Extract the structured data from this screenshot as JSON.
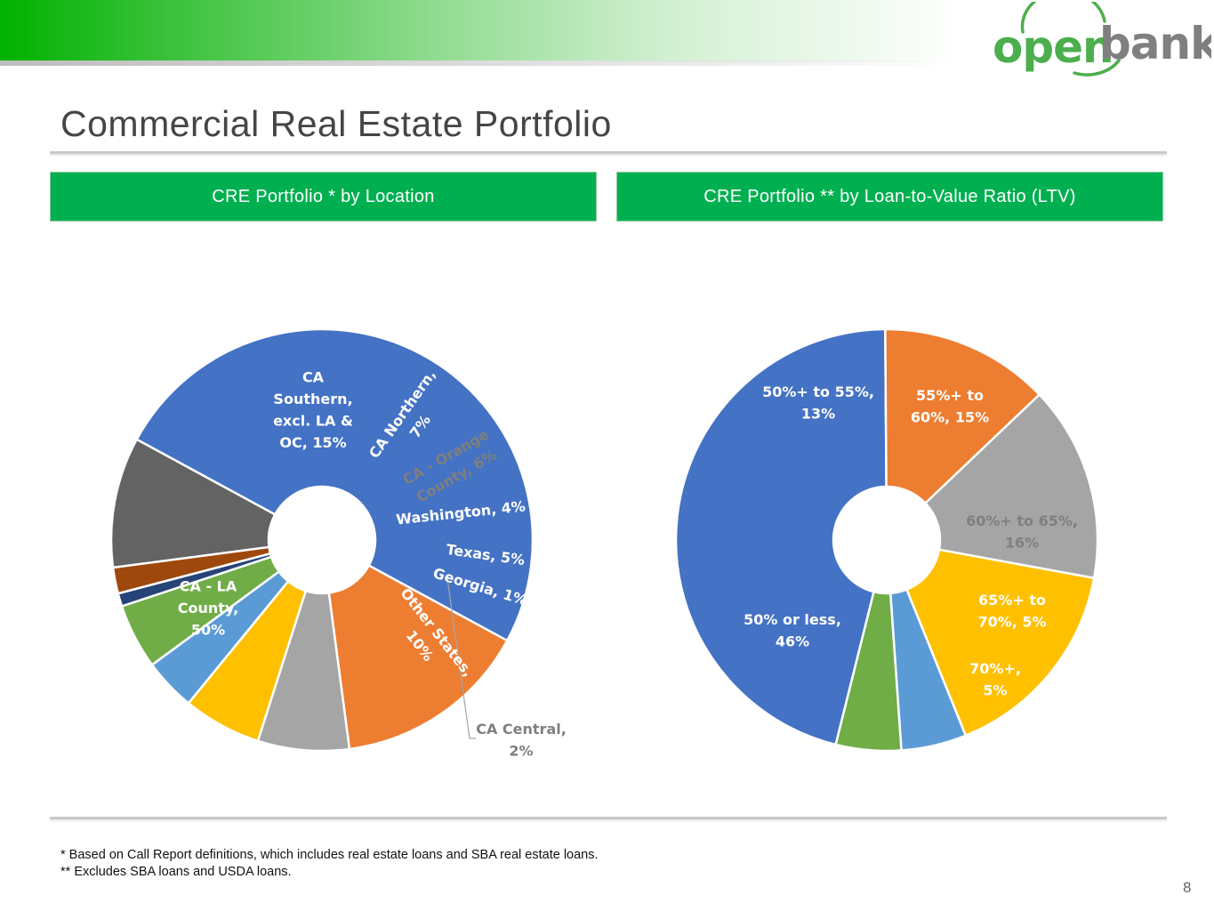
{
  "header": {
    "logo_text_open": "open",
    "logo_text_bank": "bank",
    "title": "Commercial Real Estate Portfolio"
  },
  "colors": {
    "band_green": "#00b200",
    "header_green": "#00b050",
    "logo_green": "#4cae4c",
    "logo_gray": "#7f7f7f"
  },
  "sections": {
    "location_title": "CRE Portfolio * by Location",
    "ltv_title": "CRE Portfolio ** by Loan-to-Value Ratio (LTV)"
  },
  "chart_data": [
    {
      "type": "pie",
      "donut": true,
      "title": "CRE Portfolio * by Location",
      "categories": [
        "CA - LA County",
        "CA Southern, excl. LA & OC",
        "CA Northern",
        "CA - Orange County",
        "Washington",
        "Texas",
        "Georgia",
        "CA Central",
        "Other States"
      ],
      "values": [
        50,
        15,
        7,
        6,
        4,
        5,
        1,
        2,
        10
      ],
      "units": "%",
      "colors": [
        "#4472c4",
        "#ed7d31",
        "#a5a5a5",
        "#ffc000",
        "#5b9bd5",
        "#70ad47",
        "#264478",
        "#9e480e",
        "#636363"
      ],
      "labels": [
        [
          "CA - LA",
          "County,",
          "50%"
        ],
        [
          "CA",
          "Southern,",
          "excl. LA &",
          "OC, 15%"
        ],
        [
          "CA Northern,",
          "7%"
        ],
        [
          "CA - Orange",
          "County, 6%"
        ],
        [
          "Washington, 4%"
        ],
        [
          "Texas, 5%"
        ],
        [
          "Georgia, 1%"
        ],
        [
          "CA Central,",
          "2%"
        ],
        [
          "Other States,",
          "10%"
        ]
      ]
    },
    {
      "type": "pie",
      "donut": true,
      "title": "CRE Portfolio ** by Loan-to-Value Ratio (LTV)",
      "categories": [
        "50% or less",
        "50%+ to 55%",
        "55%+ to 60%",
        "60%+ to 65%",
        "65%+ to 70%",
        "70%+"
      ],
      "values": [
        46,
        13,
        15,
        16,
        5,
        5
      ],
      "units": "%",
      "colors": [
        "#4472c4",
        "#ed7d31",
        "#a5a5a5",
        "#ffc000",
        "#5b9bd5",
        "#70ad47"
      ],
      "labels": [
        [
          "50% or less,",
          "46%"
        ],
        [
          "50%+ to 55%,",
          "13%"
        ],
        [
          "55%+ to",
          "60%, 15%"
        ],
        [
          "60%+ to 65%,",
          "16%"
        ],
        [
          "65%+ to",
          "70%, 5%"
        ],
        [
          "70%+,",
          "5%"
        ]
      ]
    }
  ],
  "footnotes": [
    "* Based on Call Report definitions, which includes real estate loans and SBA real estate loans.",
    "** Excludes SBA loans and USDA loans."
  ],
  "page_number": "8"
}
